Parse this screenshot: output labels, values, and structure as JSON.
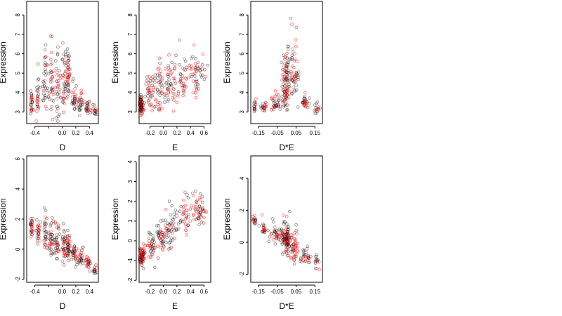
{
  "colors": {
    "group_a": "#000000",
    "group_b": "#ff0000"
  },
  "chart_data": [
    {
      "type": "scatter",
      "xlabel": "D",
      "ylabel": "Expression",
      "xlim": [
        -0.52,
        0.53
      ],
      "ylim": [
        2.4,
        8.7
      ],
      "xticks": [
        -0.4,
        -0.2,
        0.0,
        0.2,
        0.4
      ],
      "xtick_labels": [
        "-0.4",
        "",
        "0.0",
        "0.2",
        "0.4"
      ],
      "yticks": [
        3,
        4,
        5,
        6,
        7,
        8
      ],
      "ytick_labels": [
        "3",
        "4",
        "5",
        "6",
        "7",
        "8"
      ],
      "clusters": [
        {
          "x": -0.45,
          "y": 3.3,
          "sx": 0.012,
          "sy": 0.45,
          "n": 25,
          "red": 0.45
        },
        {
          "x": -0.35,
          "y": 3.6,
          "sx": 0.015,
          "sy": 0.8,
          "n": 25,
          "red": 0.4
        },
        {
          "x": -0.25,
          "y": 3.8,
          "sx": 0.018,
          "sy": 1.0,
          "n": 30,
          "red": 0.4
        },
        {
          "x": -0.16,
          "y": 3.9,
          "sx": 0.02,
          "sy": 1.1,
          "n": 35,
          "red": 0.45
        },
        {
          "x": -0.07,
          "y": 3.8,
          "sx": 0.02,
          "sy": 1.0,
          "n": 35,
          "red": 0.45
        },
        {
          "x": 0.03,
          "y": 4.2,
          "sx": 0.015,
          "sy": 1.1,
          "n": 35,
          "red": 0.4
        },
        {
          "x": 0.09,
          "y": 4.7,
          "sx": 0.012,
          "sy": 0.9,
          "n": 40,
          "red": 0.6
        },
        {
          "x": 0.18,
          "y": 3.4,
          "sx": 0.02,
          "sy": 0.5,
          "n": 30,
          "red": 0.45
        },
        {
          "x": 0.27,
          "y": 3.2,
          "sx": 0.02,
          "sy": 0.35,
          "n": 25,
          "red": 0.45
        },
        {
          "x": 0.37,
          "y": 3.1,
          "sx": 0.02,
          "sy": 0.25,
          "n": 25,
          "red": 0.45
        },
        {
          "x": 0.48,
          "y": 3.0,
          "sx": 0.015,
          "sy": 0.2,
          "n": 15,
          "red": 0.4
        }
      ]
    },
    {
      "type": "scatter",
      "xlabel": "E",
      "ylabel": "Expression",
      "xlim": [
        -0.36,
        0.7
      ],
      "ylim": [
        2.4,
        8.7
      ],
      "xticks": [
        -0.2,
        0.0,
        0.2,
        0.4,
        0.6
      ],
      "xtick_labels": [
        "-0.2",
        "0.0",
        "0.2",
        "0.4",
        "0.6"
      ],
      "yticks": [
        3,
        4,
        5,
        6,
        7,
        8
      ],
      "ytick_labels": [
        "3",
        "4",
        "5",
        "6",
        "7",
        "8"
      ],
      "clusters": [
        {
          "x": -0.33,
          "y": 3.2,
          "sx": 0.015,
          "sy": 0.3,
          "n": 70,
          "red": 0.5
        },
        {
          "x": -0.2,
          "y": 3.7,
          "sx": 0.04,
          "sy": 0.8,
          "n": 40,
          "red": 0.45
        },
        {
          "x": -0.05,
          "y": 3.9,
          "sx": 0.04,
          "sy": 0.9,
          "n": 45,
          "red": 0.45
        },
        {
          "x": 0.1,
          "y": 4.0,
          "sx": 0.05,
          "sy": 1.0,
          "n": 45,
          "red": 0.4
        },
        {
          "x": 0.3,
          "y": 4.2,
          "sx": 0.05,
          "sy": 0.9,
          "n": 35,
          "red": 0.55
        },
        {
          "x": 0.5,
          "y": 4.6,
          "sx": 0.06,
          "sy": 0.8,
          "n": 50,
          "red": 0.55
        }
      ]
    },
    {
      "type": "scatter",
      "xlabel": "D*E",
      "ylabel": "Expression",
      "xlim": [
        -0.19,
        0.19
      ],
      "ylim": [
        2.4,
        8.7
      ],
      "xticks": [
        -0.15,
        -0.05,
        0.05,
        0.15
      ],
      "xtick_labels": [
        "-0.15",
        "-0.05",
        "0.05",
        "0.15"
      ],
      "yticks": [
        3,
        4,
        5,
        6,
        7,
        8
      ],
      "ytick_labels": [
        "3",
        "4",
        "5",
        "6",
        "7",
        "8"
      ],
      "clusters": [
        {
          "x": -0.17,
          "y": 3.2,
          "sx": 0.005,
          "sy": 0.2,
          "n": 15,
          "red": 0.45
        },
        {
          "x": -0.12,
          "y": 3.2,
          "sx": 0.008,
          "sy": 0.2,
          "n": 20,
          "red": 0.45
        },
        {
          "x": -0.06,
          "y": 3.3,
          "sx": 0.015,
          "sy": 0.3,
          "n": 35,
          "red": 0.45
        },
        {
          "x": -0.01,
          "y": 3.8,
          "sx": 0.01,
          "sy": 0.9,
          "n": 60,
          "red": 0.45
        },
        {
          "x": 0.005,
          "y": 4.3,
          "sx": 0.006,
          "sy": 1.2,
          "n": 40,
          "red": 0.4
        },
        {
          "x": 0.04,
          "y": 4.6,
          "sx": 0.012,
          "sy": 1.0,
          "n": 50,
          "red": 0.55
        },
        {
          "x": 0.1,
          "y": 3.3,
          "sx": 0.015,
          "sy": 0.35,
          "n": 30,
          "red": 0.45
        },
        {
          "x": 0.16,
          "y": 3.1,
          "sx": 0.008,
          "sy": 0.25,
          "n": 15,
          "red": 0.45
        }
      ]
    },
    {
      "type": "scatter",
      "xlabel": "D",
      "ylabel": "Expression",
      "xlim": [
        -0.52,
        0.53
      ],
      "ylim": [
        -2.2,
        6.2
      ],
      "xticks": [
        -0.4,
        -0.2,
        0.0,
        0.2,
        0.4
      ],
      "xtick_labels": [
        "-0.4",
        "",
        "0.0",
        "0.2",
        "0.4"
      ],
      "yticks": [
        -2,
        0,
        2,
        4,
        6
      ],
      "ytick_labels": [
        "-2",
        "0",
        "2",
        "4",
        "6"
      ],
      "clusters": [
        {
          "x": -0.45,
          "y": 1.3,
          "sx": 0.012,
          "sy": 0.35,
          "n": 25,
          "red": 0.45
        },
        {
          "x": -0.35,
          "y": 0.9,
          "sx": 0.015,
          "sy": 0.6,
          "n": 25,
          "red": 0.4
        },
        {
          "x": -0.25,
          "y": 0.6,
          "sx": 0.018,
          "sy": 0.8,
          "n": 30,
          "red": 0.4
        },
        {
          "x": -0.16,
          "y": 0.3,
          "sx": 0.02,
          "sy": 0.8,
          "n": 35,
          "red": 0.45
        },
        {
          "x": -0.07,
          "y": 0.1,
          "sx": 0.02,
          "sy": 0.8,
          "n": 35,
          "red": 0.45
        },
        {
          "x": 0.03,
          "y": -0.1,
          "sx": 0.015,
          "sy": 0.8,
          "n": 35,
          "red": 0.4
        },
        {
          "x": 0.09,
          "y": -0.3,
          "sx": 0.012,
          "sy": 0.6,
          "n": 35,
          "red": 0.55
        },
        {
          "x": 0.18,
          "y": -0.6,
          "sx": 0.02,
          "sy": 0.5,
          "n": 30,
          "red": 0.45
        },
        {
          "x": 0.27,
          "y": -0.8,
          "sx": 0.02,
          "sy": 0.4,
          "n": 25,
          "red": 0.45
        },
        {
          "x": 0.37,
          "y": -1.1,
          "sx": 0.02,
          "sy": 0.3,
          "n": 25,
          "red": 0.45
        },
        {
          "x": 0.48,
          "y": -1.5,
          "sx": 0.015,
          "sy": 0.2,
          "n": 15,
          "red": 0.4
        }
      ]
    },
    {
      "type": "scatter",
      "xlabel": "E",
      "ylabel": "Expression",
      "xlim": [
        -0.36,
        0.7
      ],
      "ylim": [
        -2.1,
        4.3
      ],
      "xticks": [
        -0.2,
        0.0,
        0.2,
        0.4,
        0.6
      ],
      "xtick_labels": [
        "-0.2",
        "0.0",
        "0.2",
        "0.4",
        "0.6"
      ],
      "yticks": [
        -2,
        -1,
        0,
        1,
        2,
        3,
        4
      ],
      "ytick_labels": [
        "-2",
        "-1",
        "0",
        "1",
        "2",
        "3",
        "4"
      ],
      "clusters": [
        {
          "x": -0.32,
          "y": -0.9,
          "sx": 0.02,
          "sy": 0.3,
          "n": 70,
          "red": 0.5
        },
        {
          "x": -0.18,
          "y": -0.5,
          "sx": 0.04,
          "sy": 0.5,
          "n": 40,
          "red": 0.45
        },
        {
          "x": -0.03,
          "y": -0.1,
          "sx": 0.04,
          "sy": 0.6,
          "n": 45,
          "red": 0.45
        },
        {
          "x": 0.12,
          "y": 0.3,
          "sx": 0.05,
          "sy": 0.7,
          "n": 45,
          "red": 0.4
        },
        {
          "x": 0.32,
          "y": 0.8,
          "sx": 0.05,
          "sy": 0.7,
          "n": 35,
          "red": 0.55
        },
        {
          "x": 0.52,
          "y": 1.3,
          "sx": 0.06,
          "sy": 0.6,
          "n": 50,
          "red": 0.55
        }
      ]
    },
    {
      "type": "scatter",
      "xlabel": "D*E",
      "ylabel": "Expression",
      "xlim": [
        -0.19,
        0.19
      ],
      "ylim": [
        -2.5,
        5.4
      ],
      "xticks": [
        -0.15,
        -0.05,
        0.05,
        0.15
      ],
      "xtick_labels": [
        "-0.15",
        "-0.05",
        "0.05",
        "0.15"
      ],
      "yticks": [
        -2,
        0,
        2,
        4
      ],
      "ytick_labels": [
        "-2",
        "0",
        "2",
        "4"
      ],
      "clusters": [
        {
          "x": -0.17,
          "y": 1.2,
          "sx": 0.005,
          "sy": 0.25,
          "n": 15,
          "red": 0.45
        },
        {
          "x": -0.12,
          "y": 0.7,
          "sx": 0.008,
          "sy": 0.35,
          "n": 20,
          "red": 0.45
        },
        {
          "x": -0.06,
          "y": 0.3,
          "sx": 0.015,
          "sy": 0.5,
          "n": 35,
          "red": 0.45
        },
        {
          "x": -0.01,
          "y": 0.0,
          "sx": 0.01,
          "sy": 0.7,
          "n": 60,
          "red": 0.45
        },
        {
          "x": 0.005,
          "y": -0.2,
          "sx": 0.006,
          "sy": 0.8,
          "n": 40,
          "red": 0.4
        },
        {
          "x": 0.04,
          "y": -0.5,
          "sx": 0.012,
          "sy": 0.6,
          "n": 50,
          "red": 0.55
        },
        {
          "x": 0.1,
          "y": -1.0,
          "sx": 0.015,
          "sy": 0.4,
          "n": 30,
          "red": 0.45
        },
        {
          "x": 0.16,
          "y": -1.3,
          "sx": 0.008,
          "sy": 0.3,
          "n": 15,
          "red": 0.45
        }
      ]
    }
  ]
}
